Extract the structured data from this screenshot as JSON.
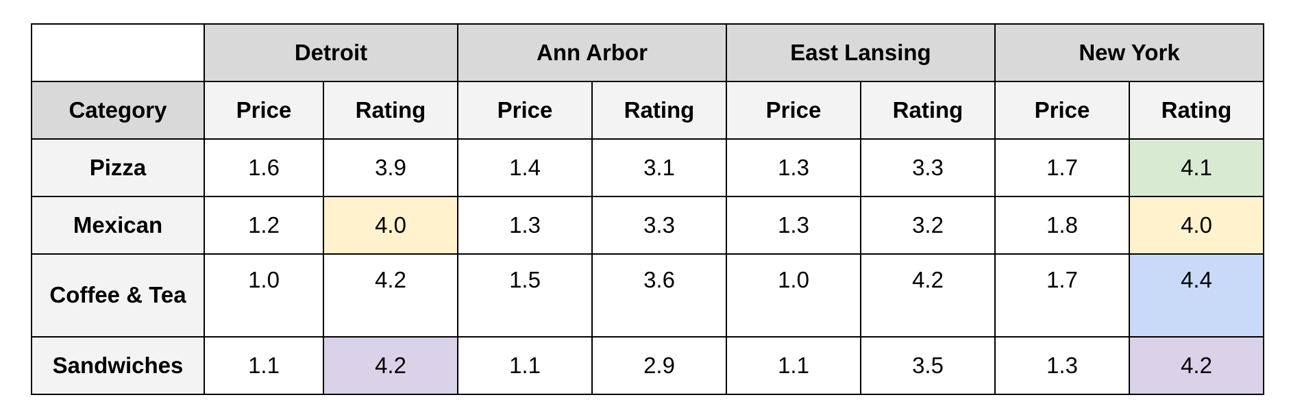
{
  "chart_data": {
    "type": "table",
    "corner": "",
    "row_header_label": "Category",
    "cities": [
      "Detroit",
      "Ann Arbor",
      "East Lansing",
      "New York"
    ],
    "metrics": [
      "Price",
      "Rating"
    ],
    "rows": [
      {
        "category": "Pizza",
        "values": [
          1.6,
          3.9,
          1.4,
          3.1,
          1.3,
          3.3,
          1.7,
          4.1
        ]
      },
      {
        "category": "Mexican",
        "values": [
          1.2,
          4.0,
          1.3,
          3.3,
          1.3,
          3.2,
          1.8,
          4.0
        ]
      },
      {
        "category": "Coffee & Tea",
        "values": [
          1.0,
          4.2,
          1.5,
          3.6,
          1.0,
          4.2,
          1.7,
          4.4
        ]
      },
      {
        "category": "Sandwiches",
        "values": [
          1.1,
          4.2,
          1.1,
          2.9,
          1.1,
          3.5,
          1.3,
          4.2
        ]
      }
    ],
    "highlights": [
      {
        "row": 0,
        "col": 7,
        "color": "#d9ead3"
      },
      {
        "row": 1,
        "col": 1,
        "color": "#fff2cc"
      },
      {
        "row": 1,
        "col": 7,
        "color": "#fff2cc"
      },
      {
        "row": 2,
        "col": 7,
        "color": "#c9daf8"
      },
      {
        "row": 3,
        "col": 1,
        "color": "#d9d2e9"
      },
      {
        "row": 3,
        "col": 7,
        "color": "#d9d2e9"
      }
    ]
  }
}
